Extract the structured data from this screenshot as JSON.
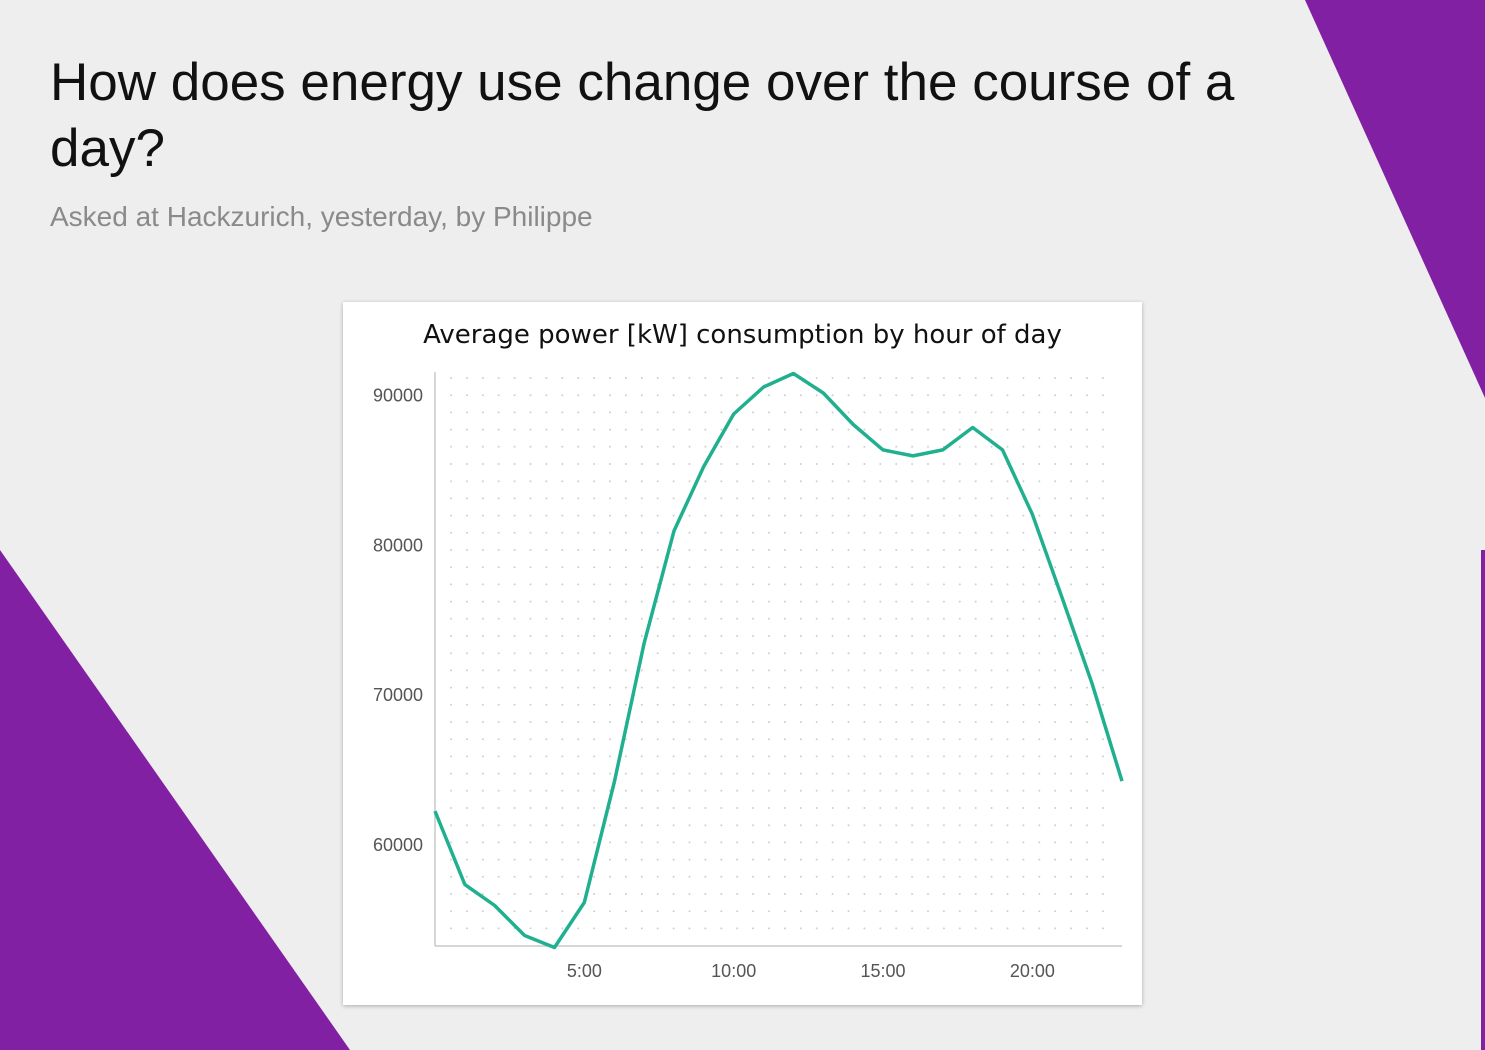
{
  "question": "How does energy use change over the course of a day?",
  "subtitle": "Asked at Hackzurich, yesterday, by Philippe",
  "colors": {
    "background": "#eeeeee",
    "accent": "#8220a3",
    "line": "#20b08f",
    "card": "#ffffff"
  },
  "chart_data": {
    "type": "line",
    "title": "Average power [kW] consumption by hour of day",
    "xlabel": "",
    "ylabel": "",
    "x_ticks": [
      {
        "value": 5,
        "label": "5:00"
      },
      {
        "value": 10,
        "label": "10:00"
      },
      {
        "value": 15,
        "label": "15:00"
      },
      {
        "value": 20,
        "label": "20:00"
      }
    ],
    "y_ticks": [
      {
        "value": 60000,
        "label": "60000"
      },
      {
        "value": 70000,
        "label": "70000"
      },
      {
        "value": 80000,
        "label": "80000"
      },
      {
        "value": 90000,
        "label": "90000"
      }
    ],
    "xlim": [
      0,
      23
    ],
    "ylim": [
      53200,
      91500
    ],
    "grid": "dotted",
    "series": [
      {
        "x": [
          0,
          1,
          2,
          3,
          4,
          5,
          6,
          7,
          8,
          9,
          10,
          11,
          12,
          13,
          14,
          15,
          16,
          17,
          18,
          19,
          20,
          21,
          22,
          23
        ],
        "values": [
          62200,
          57300,
          55900,
          53900,
          53100,
          56100,
          64100,
          73400,
          80900,
          85200,
          88700,
          90500,
          91400,
          90100,
          88000,
          86300,
          85900,
          86300,
          87800,
          86300,
          82000,
          76400,
          70700,
          64200
        ]
      }
    ]
  }
}
